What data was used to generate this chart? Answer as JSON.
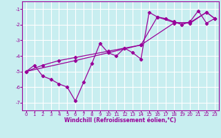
{
  "xlabel": "Windchill (Refroidissement éolien,°C)",
  "background_color": "#c8eef0",
  "grid_color": "#ffffff",
  "line_color": "#990099",
  "xlim": [
    -0.5,
    23.5
  ],
  "ylim": [
    -7.5,
    -0.5
  ],
  "yticks": [
    -7,
    -6,
    -5,
    -4,
    -3,
    -2,
    -1
  ],
  "xticks": [
    0,
    1,
    2,
    3,
    4,
    5,
    6,
    7,
    8,
    9,
    10,
    11,
    12,
    13,
    14,
    15,
    16,
    17,
    18,
    19,
    20,
    21,
    22,
    23
  ],
  "series": [
    {
      "x": [
        0,
        1,
        2,
        3,
        4,
        5,
        6,
        7,
        8,
        9,
        10,
        11,
        12,
        13,
        14,
        15,
        16,
        17,
        18,
        19,
        20,
        21,
        22,
        23
      ],
      "y": [
        -5.0,
        -4.6,
        -5.3,
        -5.5,
        -5.8,
        -6.0,
        -6.9,
        -5.7,
        -4.5,
        -3.2,
        -3.8,
        -4.0,
        -3.5,
        -3.8,
        -4.2,
        -1.2,
        -1.5,
        -1.6,
        -1.8,
        -2.0,
        -1.8,
        -1.1,
        -1.9,
        -1.6
      ]
    },
    {
      "x": [
        0,
        2,
        4,
        6,
        10,
        12,
        14,
        16,
        18,
        20,
        22,
        23
      ],
      "y": [
        -5.0,
        -4.6,
        -4.3,
        -4.1,
        -3.7,
        -3.5,
        -3.3,
        -1.5,
        -1.85,
        -1.9,
        -1.2,
        -1.6
      ]
    },
    {
      "x": [
        0,
        6,
        10,
        14,
        18,
        20,
        22,
        23
      ],
      "y": [
        -5.0,
        -4.3,
        -3.8,
        -3.3,
        -1.9,
        -1.85,
        -1.2,
        -1.6
      ]
    }
  ]
}
